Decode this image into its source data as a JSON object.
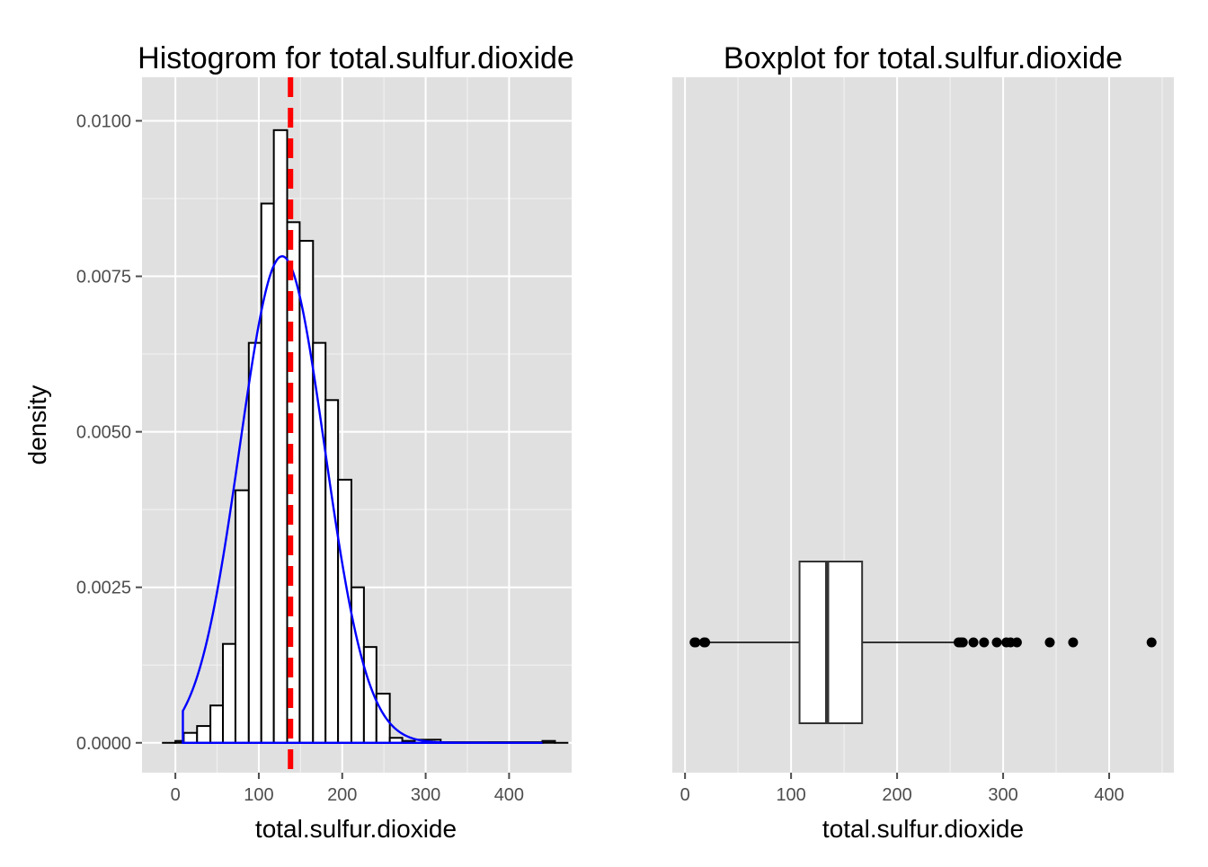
{
  "chart_data": [
    {
      "type": "histogram",
      "title": "Histogrom for total.sulfur.dioxide",
      "xlabel": "total.sulfur.dioxide",
      "ylabel": "density",
      "xlim": [
        -40,
        475
      ],
      "ylim": [
        -0.00048,
        0.0107
      ],
      "x_ticks": [
        0,
        100,
        200,
        300,
        400
      ],
      "y_ticks": [
        0.0,
        0.0025,
        0.005,
        0.0075,
        0.01
      ],
      "y_tick_labels": [
        "0.0000",
        "0.0025",
        "0.0050",
        "0.0075",
        "0.0100"
      ],
      "x_tick_labels": [
        "0",
        "100",
        "200",
        "300",
        "400"
      ],
      "grid": true,
      "bins": [
        {
          "x0": -15,
          "x1": 0,
          "density": 0.0
        },
        {
          "x0": 0,
          "x1": 10,
          "density": 3e-05
        },
        {
          "x0": 10,
          "x1": 26,
          "density": 0.00016
        },
        {
          "x0": 26,
          "x1": 42,
          "density": 0.00027
        },
        {
          "x0": 42,
          "x1": 57,
          "density": 0.0006
        },
        {
          "x0": 57,
          "x1": 72,
          "density": 0.00159
        },
        {
          "x0": 72,
          "x1": 88,
          "density": 0.00406
        },
        {
          "x0": 88,
          "x1": 103,
          "density": 0.00643
        },
        {
          "x0": 103,
          "x1": 118,
          "density": 0.00867
        },
        {
          "x0": 118,
          "x1": 134,
          "density": 0.00985
        },
        {
          "x0": 134,
          "x1": 149,
          "density": 0.00837
        },
        {
          "x0": 149,
          "x1": 165,
          "density": 0.00807
        },
        {
          "x0": 165,
          "x1": 180,
          "density": 0.00643
        },
        {
          "x0": 180,
          "x1": 195,
          "density": 0.00551
        },
        {
          "x0": 195,
          "x1": 211,
          "density": 0.00423
        },
        {
          "x0": 211,
          "x1": 226,
          "density": 0.0025
        },
        {
          "x0": 226,
          "x1": 241,
          "density": 0.00154
        },
        {
          "x0": 241,
          "x1": 257,
          "density": 0.00079
        },
        {
          "x0": 257,
          "x1": 272,
          "density": 8e-05
        },
        {
          "x0": 272,
          "x1": 287,
          "density": 3e-05
        },
        {
          "x0": 287,
          "x1": 318,
          "density": 5e-05
        },
        {
          "x0": 318,
          "x1": 440,
          "density": 1e-05
        },
        {
          "x0": 440,
          "x1": 455,
          "density": 3e-05
        },
        {
          "x0": 455,
          "x1": 470,
          "density": 0.0
        }
      ],
      "normal_curve": {
        "mean": 128,
        "sd": 51,
        "x_from": 9,
        "x_to": 440,
        "color": "#0000ff"
      },
      "mean_line": {
        "x": 138,
        "color": "#ff0000",
        "style": "dashed"
      }
    },
    {
      "type": "boxplot",
      "title": "Boxplot for total.sulfur.dioxide",
      "xlabel": "total.sulfur.dioxide",
      "xlim": [
        -12,
        461
      ],
      "x_ticks": [
        0,
        100,
        200,
        300,
        400
      ],
      "x_tick_labels": [
        "0",
        "100",
        "200",
        "300",
        "400"
      ],
      "grid": true,
      "box": {
        "q1": 108,
        "median": 134,
        "q3": 167,
        "whisker_low": 21,
        "whisker_high": 256
      },
      "outliers": [
        9,
        10,
        18,
        19,
        258,
        260,
        262,
        272,
        282,
        294,
        303,
        307,
        313,
        344,
        366,
        440
      ]
    }
  ],
  "colors": {
    "panel": "#e0e0e0",
    "grid_major": "#ffffff",
    "grid_minor": "#f0f0f0",
    "bar_fill": "#ffffff",
    "bar_stroke": "#000000",
    "curve": "#0000ff",
    "mean_line": "#ff0000"
  }
}
